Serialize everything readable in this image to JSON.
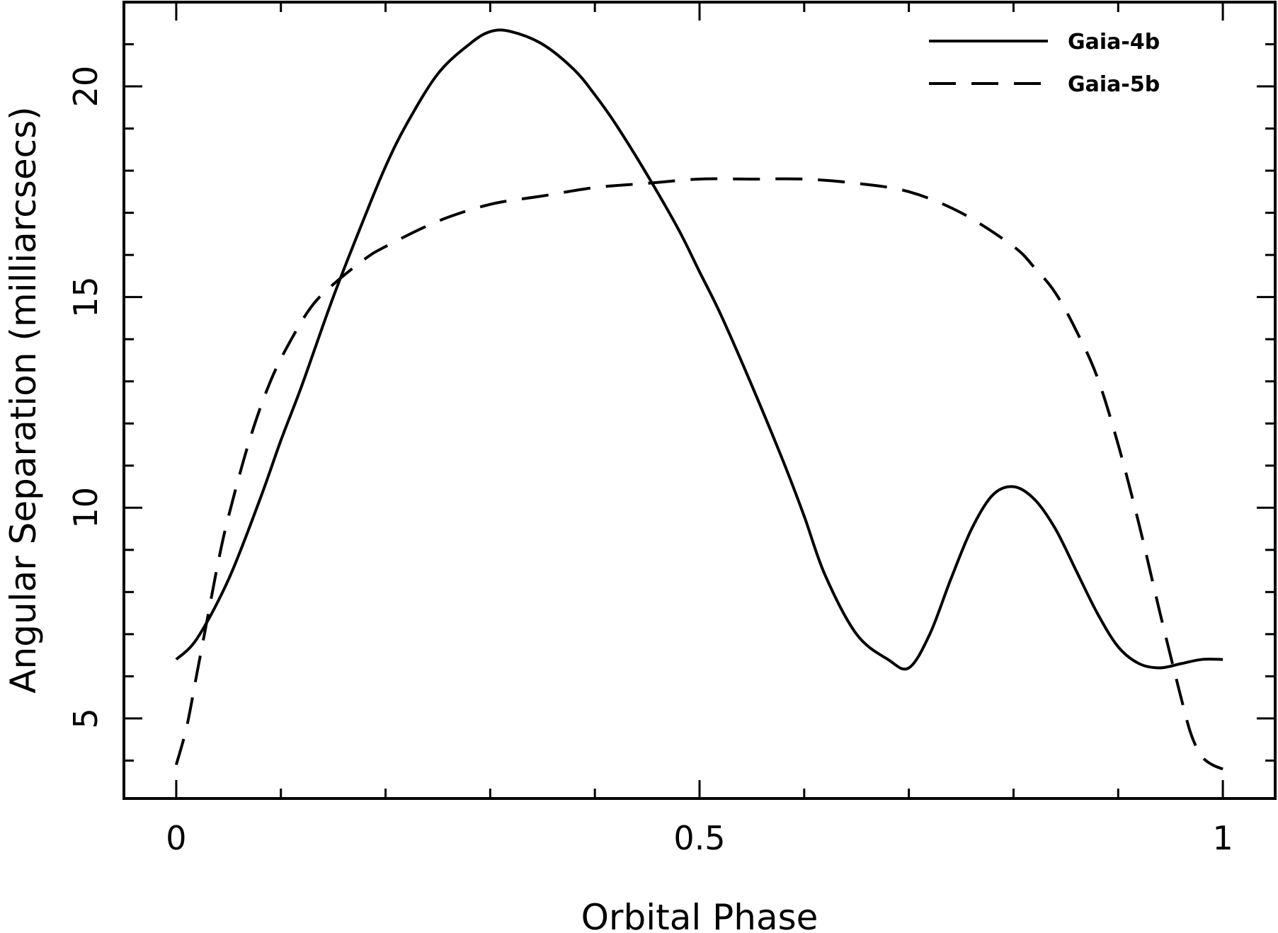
{
  "chart_data": {
    "type": "line",
    "xlabel": "Orbital Phase",
    "ylabel": "Angular Separation (milliarcsecs)",
    "xlim": [
      -0.05,
      1.05
    ],
    "ylim": [
      3.1,
      22.0
    ],
    "x_ticks_major": [
      0,
      0.5,
      1
    ],
    "x_tick_labels": [
      "0",
      "0.5",
      "1"
    ],
    "x_ticks_minor": [
      0.1,
      0.2,
      0.3,
      0.4,
      0.6,
      0.7,
      0.8,
      0.9
    ],
    "y_ticks_major": [
      5,
      10,
      15,
      20
    ],
    "y_tick_labels": [
      "5",
      "10",
      "15",
      "20"
    ],
    "y_ticks_minor": [
      4,
      6,
      7,
      8,
      9,
      11,
      12,
      13,
      14,
      16,
      17,
      18,
      19,
      21
    ],
    "legend": {
      "position": "top-right"
    },
    "grid": false,
    "series": [
      {
        "name": "Gaia-4b",
        "style": "solid",
        "x": [
          0.0,
          0.02,
          0.05,
          0.08,
          0.1,
          0.12,
          0.15,
          0.18,
          0.2,
          0.22,
          0.25,
          0.28,
          0.3,
          0.32,
          0.35,
          0.38,
          0.4,
          0.42,
          0.45,
          0.48,
          0.5,
          0.52,
          0.55,
          0.58,
          0.6,
          0.62,
          0.65,
          0.68,
          0.7,
          0.72,
          0.74,
          0.76,
          0.78,
          0.8,
          0.82,
          0.84,
          0.86,
          0.88,
          0.9,
          0.92,
          0.94,
          0.96,
          0.98,
          1.0
        ],
        "y": [
          6.4,
          6.9,
          8.3,
          10.2,
          11.6,
          12.9,
          15.0,
          16.9,
          18.1,
          19.1,
          20.3,
          21.0,
          21.3,
          21.3,
          21.0,
          20.4,
          19.8,
          19.1,
          17.9,
          16.6,
          15.6,
          14.6,
          12.9,
          11.1,
          9.8,
          8.4,
          7.0,
          6.4,
          6.2,
          7.0,
          8.3,
          9.5,
          10.3,
          10.5,
          10.2,
          9.5,
          8.5,
          7.5,
          6.7,
          6.3,
          6.2,
          6.3,
          6.4,
          6.4
        ]
      },
      {
        "name": "Gaia-5b",
        "style": "dashed",
        "x": [
          0.0,
          0.01,
          0.02,
          0.03,
          0.04,
          0.05,
          0.07,
          0.09,
          0.11,
          0.13,
          0.15,
          0.18,
          0.2,
          0.25,
          0.3,
          0.35,
          0.4,
          0.45,
          0.5,
          0.55,
          0.6,
          0.65,
          0.7,
          0.75,
          0.8,
          0.82,
          0.84,
          0.86,
          0.88,
          0.9,
          0.92,
          0.94,
          0.96,
          0.97,
          0.98,
          0.99,
          1.0
        ],
        "y": [
          3.9,
          4.8,
          6.1,
          7.4,
          8.7,
          9.8,
          11.6,
          13.0,
          14.0,
          14.8,
          15.3,
          15.9,
          16.2,
          16.8,
          17.2,
          17.4,
          17.6,
          17.7,
          17.8,
          17.8,
          17.8,
          17.7,
          17.5,
          17.0,
          16.2,
          15.7,
          15.1,
          14.2,
          13.1,
          11.5,
          9.6,
          7.5,
          5.5,
          4.6,
          4.1,
          3.9,
          3.8
        ]
      }
    ]
  }
}
